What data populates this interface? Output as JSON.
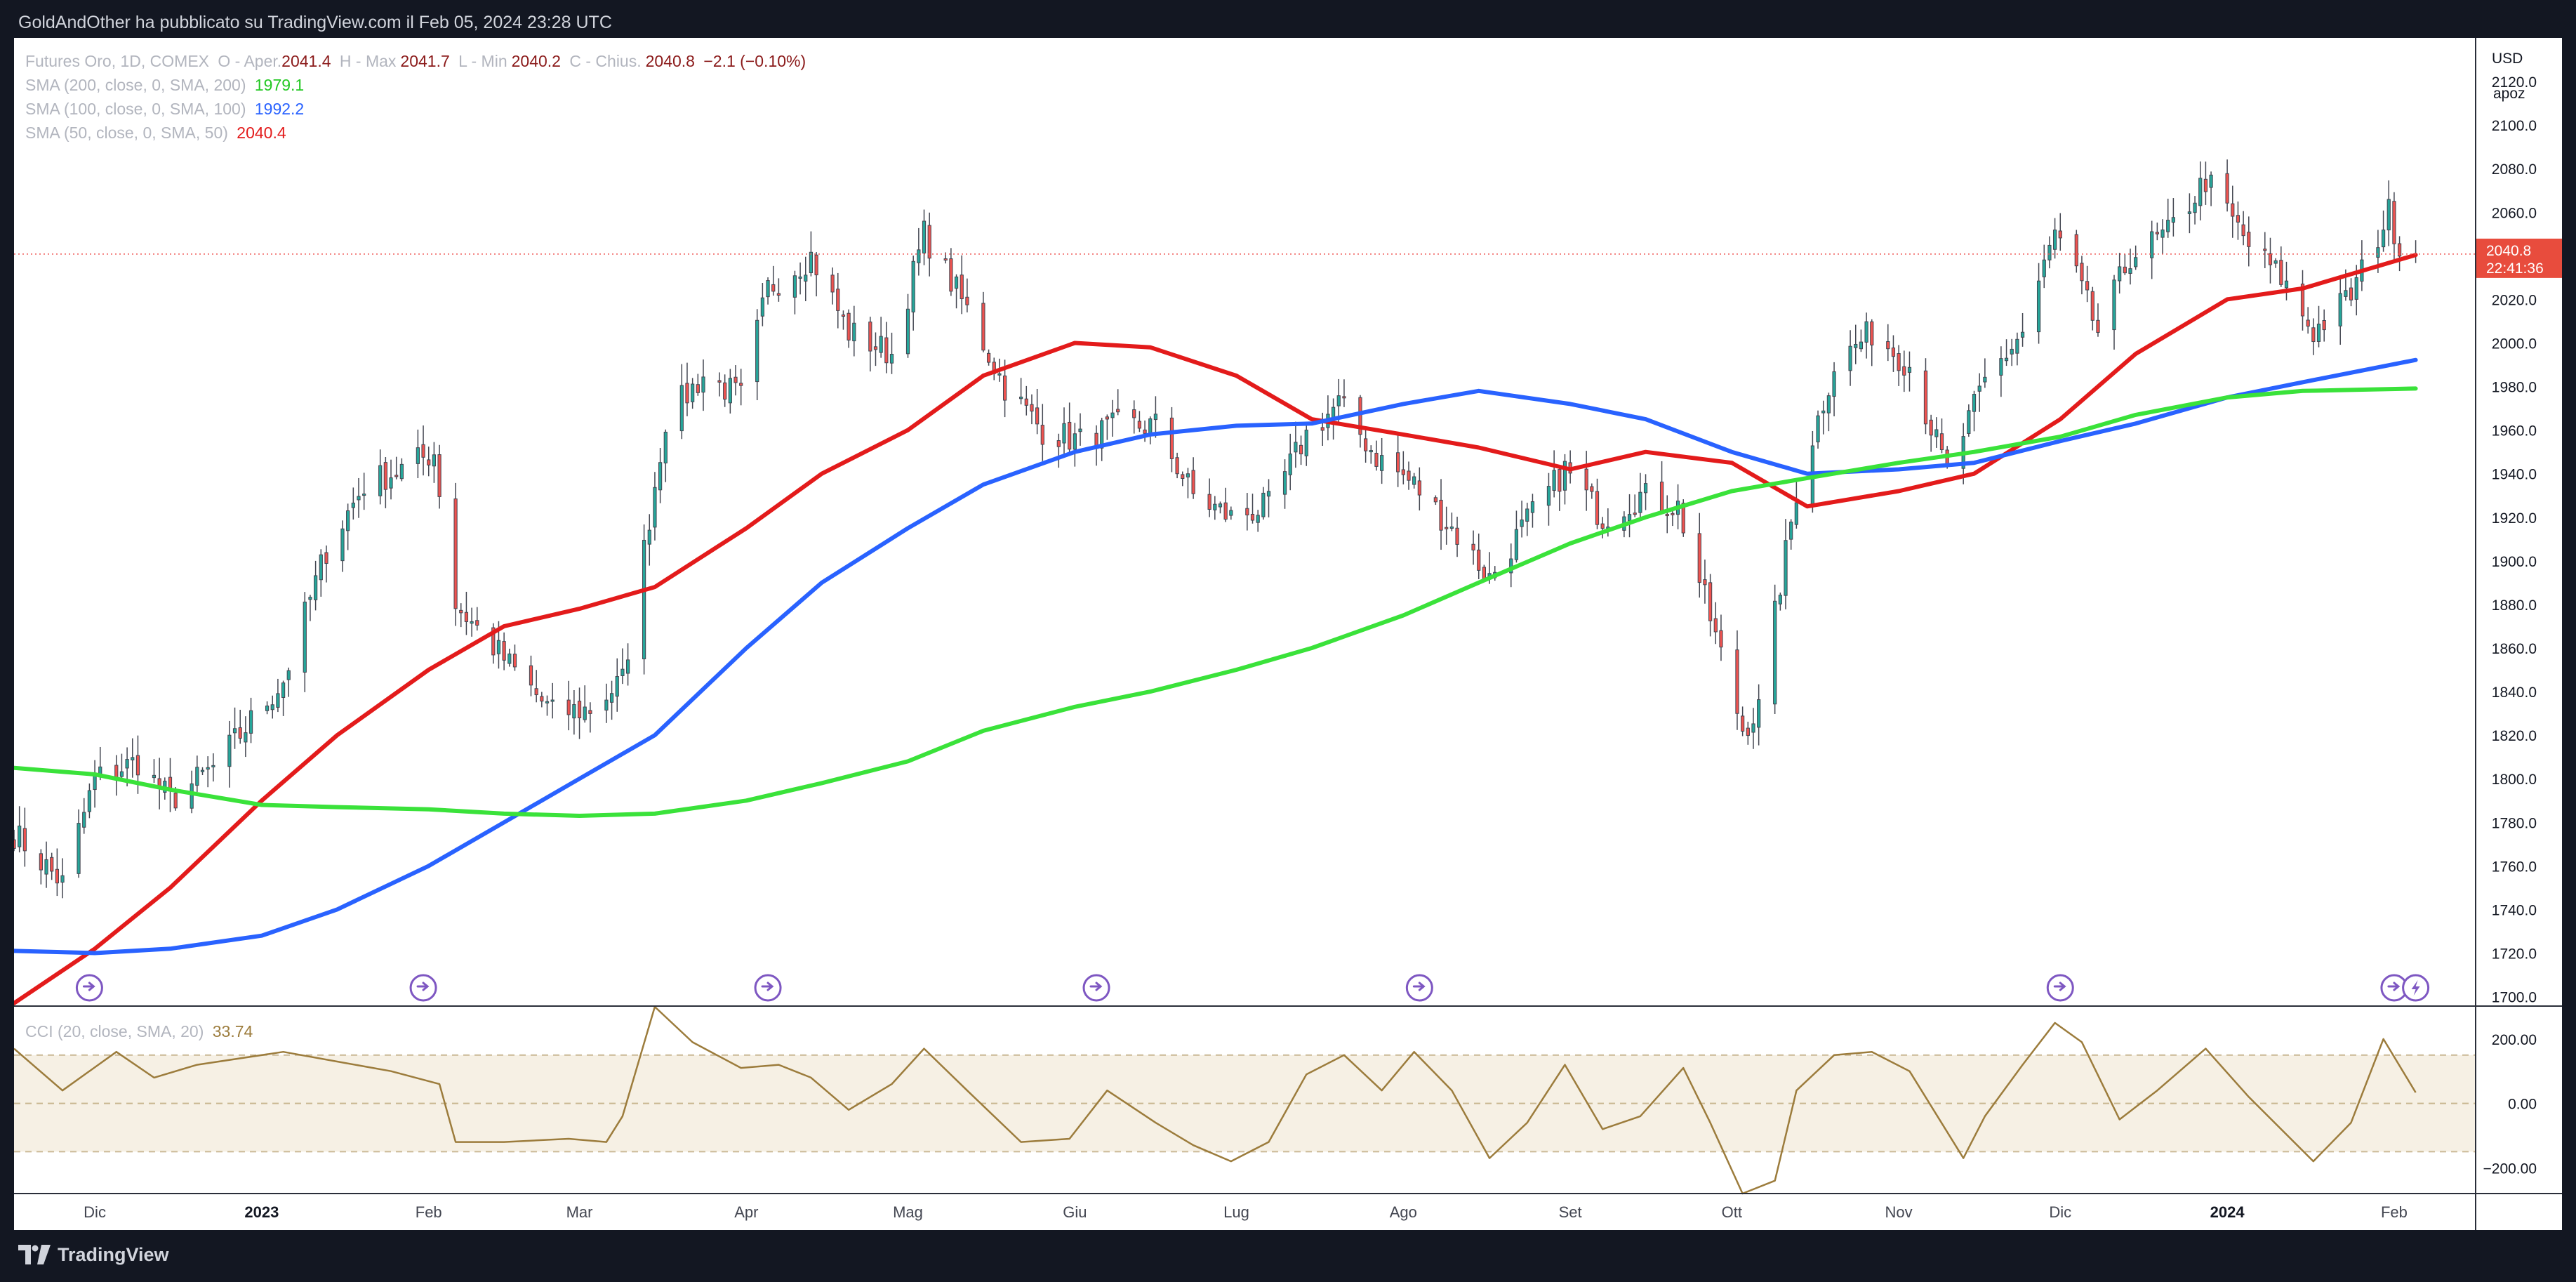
{
  "header": {
    "published_by": "GoldAndOther ha pubblicato su TradingView.com il Feb 05, 2024 23:28 UTC"
  },
  "legend": {
    "instrument": "Futures Oro, 1D, COMEX",
    "open_label": "O - Aper.",
    "open_value": "2041.4",
    "high_label": "H - Max",
    "high_value": "2041.7",
    "low_label": "L - Min",
    "low_value": "2040.2",
    "close_label": "C - Chius.",
    "close_value": "2040.8",
    "change": "−2.1 (−0.10%)",
    "sma200_label": "SMA (200, close, 0, SMA, 200)",
    "sma200_value": "1979.1",
    "sma100_label": "SMA (100, close, 0, SMA, 100)",
    "sma100_value": "1992.2",
    "sma50_label": "SMA (50, close, 0, SMA, 50)",
    "sma50_value": "2040.4",
    "cci_label": "CCI (20, close, SMA, 20)",
    "cci_value": "33.74"
  },
  "right_panel": {
    "currency": "USD",
    "scale_mode": "apoz",
    "price_tag": "2040.8",
    "countdown": "22:41:36"
  },
  "footer": {
    "brand": "TradingView"
  },
  "colors": {
    "up": "#26a69a",
    "down": "#ef5350",
    "sma50": "#e31b1b",
    "sma100": "#2962ff",
    "sma200": "#3ae23a",
    "cci": "#9c7c3c",
    "cci_band": "#f6f0e4",
    "flag": "#7e57c2"
  },
  "icons": {
    "flag_icons": "earnings-flag-icon",
    "last_flag": "lightning-flag-icon",
    "logo": "tradingview-logo-icon"
  },
  "chart_data": [
    {
      "type": "candlestick",
      "title": "",
      "y_axis_ticks": [
        1700,
        1720,
        1740,
        1760,
        1780,
        1800,
        1820,
        1840,
        1860,
        1880,
        1900,
        1920,
        1940,
        1960,
        1980,
        2000,
        2020,
        2040,
        2060,
        2080,
        2100,
        2120
      ],
      "ylim": [
        1696,
        2140
      ],
      "x_axis_labels": [
        {
          "date": "2022-12-01",
          "label": "Dic"
        },
        {
          "date": "2023-01-01",
          "label": "2023"
        },
        {
          "date": "2023-02-01",
          "label": "Feb"
        },
        {
          "date": "2023-03-01",
          "label": "Mar"
        },
        {
          "date": "2023-04-01",
          "label": "Apr"
        },
        {
          "date": "2023-05-01",
          "label": "Mag"
        },
        {
          "date": "2023-06-01",
          "label": "Giu"
        },
        {
          "date": "2023-07-01",
          "label": "Lug"
        },
        {
          "date": "2023-08-01",
          "label": "Ago"
        },
        {
          "date": "2023-09-01",
          "label": "Set"
        },
        {
          "date": "2023-10-01",
          "label": "Ott"
        },
        {
          "date": "2023-11-01",
          "label": "Nov"
        },
        {
          "date": "2023-12-01",
          "label": "Dic"
        },
        {
          "date": "2024-01-01",
          "label": "2024"
        },
        {
          "date": "2024-02-01",
          "label": "Feb"
        }
      ],
      "xlim": [
        "2022-11-16",
        "2024-02-16"
      ],
      "price_close_path": [
        [
          "2022-11-16",
          1775
        ],
        [
          "2022-11-25",
          1752
        ],
        [
          "2022-12-01",
          1800
        ],
        [
          "2022-12-09",
          1808
        ],
        [
          "2022-12-15",
          1790
        ],
        [
          "2022-12-23",
          1805
        ],
        [
          "2023-01-05",
          1845
        ],
        [
          "2023-01-13",
          1905
        ],
        [
          "2023-01-20",
          1935
        ],
        [
          "2023-01-27",
          1942
        ],
        [
          "2023-02-02",
          1950
        ],
        [
          "2023-02-06",
          1880
        ],
        [
          "2023-02-15",
          1855
        ],
        [
          "2023-02-24",
          1830
        ],
        [
          "2023-03-03",
          1832
        ],
        [
          "2023-03-09",
          1845
        ],
        [
          "2023-03-17",
          1965
        ],
        [
          "2023-03-24",
          1985
        ],
        [
          "2023-03-31",
          1975
        ],
        [
          "2023-04-05",
          2025
        ],
        [
          "2023-04-13",
          2040
        ],
        [
          "2023-04-20",
          2005
        ],
        [
          "2023-04-28",
          1995
        ],
        [
          "2023-05-04",
          2050
        ],
        [
          "2023-05-12",
          2015
        ],
        [
          "2023-05-19",
          1980
        ],
        [
          "2023-05-26",
          1960
        ],
        [
          "2023-06-02",
          1955
        ],
        [
          "2023-06-09",
          1962
        ],
        [
          "2023-06-16",
          1962
        ],
        [
          "2023-06-23",
          1930
        ],
        [
          "2023-06-30",
          1920
        ],
        [
          "2023-07-07",
          1925
        ],
        [
          "2023-07-14",
          1958
        ],
        [
          "2023-07-20",
          1972
        ],
        [
          "2023-07-27",
          1948
        ],
        [
          "2023-08-03",
          1935
        ],
        [
          "2023-08-10",
          1915
        ],
        [
          "2023-08-17",
          1892
        ],
        [
          "2023-08-24",
          1918
        ],
        [
          "2023-08-31",
          1942
        ],
        [
          "2023-09-07",
          1920
        ],
        [
          "2023-09-14",
          1930
        ],
        [
          "2023-09-21",
          1925
        ],
        [
          "2023-09-28",
          1865
        ],
        [
          "2023-10-03",
          1823
        ],
        [
          "2023-10-06",
          1832
        ],
        [
          "2023-10-13",
          1932
        ],
        [
          "2023-10-20",
          1990
        ],
        [
          "2023-10-27",
          2005
        ],
        [
          "2023-11-03",
          1990
        ],
        [
          "2023-11-10",
          1940
        ],
        [
          "2023-11-17",
          1982
        ],
        [
          "2023-11-24",
          2005
        ],
        [
          "2023-11-30",
          2050
        ],
        [
          "2023-12-04",
          2030
        ],
        [
          "2023-12-08",
          2005
        ],
        [
          "2023-12-14",
          2040
        ],
        [
          "2023-12-21",
          2050
        ],
        [
          "2023-12-28",
          2075
        ],
        [
          "2024-01-05",
          2045
        ],
        [
          "2024-01-11",
          2030
        ],
        [
          "2024-01-17",
          2005
        ],
        [
          "2024-01-24",
          2022
        ],
        [
          "2024-01-31",
          2060
        ],
        [
          "2024-02-02",
          2045
        ],
        [
          "2024-02-05",
          2040.8
        ]
      ],
      "series": [
        {
          "name": "SMA (50, close, 0, SMA, 50)",
          "color": "#e31b1b",
          "values": [
            [
              "2022-11-16",
              1697
            ],
            [
              "2022-12-01",
              1722
            ],
            [
              "2022-12-15",
              1750
            ],
            [
              "2023-01-01",
              1790
            ],
            [
              "2023-01-15",
              1820
            ],
            [
              "2023-02-01",
              1850
            ],
            [
              "2023-02-15",
              1870
            ],
            [
              "2023-03-01",
              1878
            ],
            [
              "2023-03-15",
              1888
            ],
            [
              "2023-04-01",
              1915
            ],
            [
              "2023-04-15",
              1940
            ],
            [
              "2023-05-01",
              1960
            ],
            [
              "2023-05-15",
              1985
            ],
            [
              "2023-06-01",
              2000
            ],
            [
              "2023-06-15",
              1998
            ],
            [
              "2023-07-01",
              1985
            ],
            [
              "2023-07-15",
              1965
            ],
            [
              "2023-08-01",
              1958
            ],
            [
              "2023-08-15",
              1952
            ],
            [
              "2023-09-01",
              1942
            ],
            [
              "2023-09-15",
              1950
            ],
            [
              "2023-10-01",
              1945
            ],
            [
              "2023-10-15",
              1925
            ],
            [
              "2023-11-01",
              1932
            ],
            [
              "2023-11-15",
              1940
            ],
            [
              "2023-12-01",
              1965
            ],
            [
              "2023-12-15",
              1995
            ],
            [
              "2024-01-01",
              2020
            ],
            [
              "2024-01-15",
              2025
            ],
            [
              "2024-02-05",
              2040.4
            ]
          ]
        },
        {
          "name": "SMA (100, close, 0, SMA, 100)",
          "color": "#2962ff",
          "values": [
            [
              "2022-11-16",
              1721
            ],
            [
              "2022-12-01",
              1720
            ],
            [
              "2022-12-15",
              1722
            ],
            [
              "2023-01-01",
              1728
            ],
            [
              "2023-01-15",
              1740
            ],
            [
              "2023-02-01",
              1760
            ],
            [
              "2023-02-15",
              1780
            ],
            [
              "2023-03-01",
              1800
            ],
            [
              "2023-03-15",
              1820
            ],
            [
              "2023-04-01",
              1860
            ],
            [
              "2023-04-15",
              1890
            ],
            [
              "2023-05-01",
              1915
            ],
            [
              "2023-05-15",
              1935
            ],
            [
              "2023-06-01",
              1950
            ],
            [
              "2023-06-15",
              1958
            ],
            [
              "2023-07-01",
              1962
            ],
            [
              "2023-07-15",
              1963
            ],
            [
              "2023-08-01",
              1972
            ],
            [
              "2023-08-15",
              1978
            ],
            [
              "2023-09-01",
              1972
            ],
            [
              "2023-09-15",
              1965
            ],
            [
              "2023-10-01",
              1950
            ],
            [
              "2023-10-15",
              1940
            ],
            [
              "2023-11-01",
              1942
            ],
            [
              "2023-11-15",
              1945
            ],
            [
              "2023-12-01",
              1955
            ],
            [
              "2023-12-15",
              1963
            ],
            [
              "2024-01-01",
              1975
            ],
            [
              "2024-01-15",
              1982
            ],
            [
              "2024-02-05",
              1992.2
            ]
          ]
        },
        {
          "name": "SMA (200, close, 0, SMA, 200)",
          "color": "#3ae23a",
          "values": [
            [
              "2022-11-16",
              1805
            ],
            [
              "2022-12-01",
              1802
            ],
            [
              "2022-12-15",
              1795
            ],
            [
              "2023-01-01",
              1788
            ],
            [
              "2023-01-15",
              1787
            ],
            [
              "2023-02-01",
              1786
            ],
            [
              "2023-02-15",
              1784
            ],
            [
              "2023-03-01",
              1783
            ],
            [
              "2023-03-15",
              1784
            ],
            [
              "2023-04-01",
              1790
            ],
            [
              "2023-04-15",
              1798
            ],
            [
              "2023-05-01",
              1808
            ],
            [
              "2023-05-15",
              1822
            ],
            [
              "2023-06-01",
              1833
            ],
            [
              "2023-06-15",
              1840
            ],
            [
              "2023-07-01",
              1850
            ],
            [
              "2023-07-15",
              1860
            ],
            [
              "2023-08-01",
              1875
            ],
            [
              "2023-08-15",
              1890
            ],
            [
              "2023-09-01",
              1908
            ],
            [
              "2023-09-15",
              1920
            ],
            [
              "2023-10-01",
              1932
            ],
            [
              "2023-10-15",
              1938
            ],
            [
              "2023-11-01",
              1945
            ],
            [
              "2023-11-15",
              1950
            ],
            [
              "2023-12-01",
              1957
            ],
            [
              "2023-12-15",
              1967
            ],
            [
              "2024-01-01",
              1975
            ],
            [
              "2024-01-15",
              1978
            ],
            [
              "2024-02-05",
              1979.1
            ]
          ]
        }
      ],
      "events": [
        "2022-11-30",
        "2023-01-31",
        "2023-04-05",
        "2023-06-05",
        "2023-08-04",
        "2023-12-01",
        "2024-02-01"
      ],
      "last_event": "2024-02-05"
    },
    {
      "type": "line",
      "title": "",
      "y_axis_ticks": [
        -200,
        0,
        200
      ],
      "ylim": [
        -280,
        300
      ],
      "band": [
        -150,
        150
      ],
      "series": [
        {
          "name": "CCI (20, close, SMA, 20)",
          "color": "#9c7c3c",
          "values": [
            [
              "2022-11-16",
              170
            ],
            [
              "2022-11-25",
              40
            ],
            [
              "2022-12-05",
              160
            ],
            [
              "2022-12-12",
              80
            ],
            [
              "2022-12-20",
              120
            ],
            [
              "2023-01-05",
              160
            ],
            [
              "2023-01-15",
              130
            ],
            [
              "2023-01-25",
              100
            ],
            [
              "2023-02-03",
              60
            ],
            [
              "2023-02-06",
              -120
            ],
            [
              "2023-02-15",
              -120
            ],
            [
              "2023-02-27",
              -110
            ],
            [
              "2023-03-06",
              -120
            ],
            [
              "2023-03-09",
              -40
            ],
            [
              "2023-03-15",
              300
            ],
            [
              "2023-03-22",
              190
            ],
            [
              "2023-03-31",
              110
            ],
            [
              "2023-04-07",
              120
            ],
            [
              "2023-04-13",
              80
            ],
            [
              "2023-04-20",
              -20
            ],
            [
              "2023-04-28",
              60
            ],
            [
              "2023-05-04",
              170
            ],
            [
              "2023-05-12",
              40
            ],
            [
              "2023-05-22",
              -120
            ],
            [
              "2023-05-31",
              -110
            ],
            [
              "2023-06-07",
              40
            ],
            [
              "2023-06-16",
              -60
            ],
            [
              "2023-06-23",
              -130
            ],
            [
              "2023-06-30",
              -180
            ],
            [
              "2023-07-07",
              -120
            ],
            [
              "2023-07-14",
              90
            ],
            [
              "2023-07-21",
              150
            ],
            [
              "2023-07-28",
              40
            ],
            [
              "2023-08-03",
              160
            ],
            [
              "2023-08-10",
              40
            ],
            [
              "2023-08-17",
              -170
            ],
            [
              "2023-08-24",
              -60
            ],
            [
              "2023-08-31",
              120
            ],
            [
              "2023-09-07",
              -80
            ],
            [
              "2023-09-14",
              -40
            ],
            [
              "2023-09-22",
              110
            ],
            [
              "2023-09-27",
              -60
            ],
            [
              "2023-10-03",
              -280
            ],
            [
              "2023-10-09",
              -240
            ],
            [
              "2023-10-13",
              40
            ],
            [
              "2023-10-20",
              150
            ],
            [
              "2023-10-27",
              160
            ],
            [
              "2023-11-03",
              100
            ],
            [
              "2023-11-13",
              -170
            ],
            [
              "2023-11-17",
              -40
            ],
            [
              "2023-11-24",
              120
            ],
            [
              "2023-11-30",
              250
            ],
            [
              "2023-12-05",
              190
            ],
            [
              "2023-12-12",
              -50
            ],
            [
              "2023-12-19",
              40
            ],
            [
              "2023-12-28",
              170
            ],
            [
              "2024-01-05",
              20
            ],
            [
              "2024-01-17",
              -180
            ],
            [
              "2024-01-24",
              -60
            ],
            [
              "2024-01-30",
              200
            ],
            [
              "2024-02-05",
              33.74
            ]
          ]
        }
      ]
    }
  ]
}
